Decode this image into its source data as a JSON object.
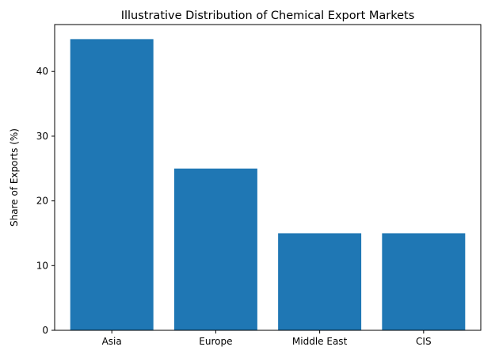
{
  "chart_data": {
    "type": "bar",
    "title": "Illustrative Distribution of Chemical Export Markets",
    "xlabel": "",
    "ylabel": "Share of Exports (%)",
    "categories": [
      "Asia",
      "Europe",
      "Middle East",
      "CIS"
    ],
    "values": [
      45,
      25,
      15,
      15
    ],
    "ylim": [
      0,
      47.25
    ],
    "yticks": [
      0,
      10,
      20,
      30,
      40
    ],
    "grid": false,
    "legend": "none",
    "bar_color": "#1f77b4"
  }
}
